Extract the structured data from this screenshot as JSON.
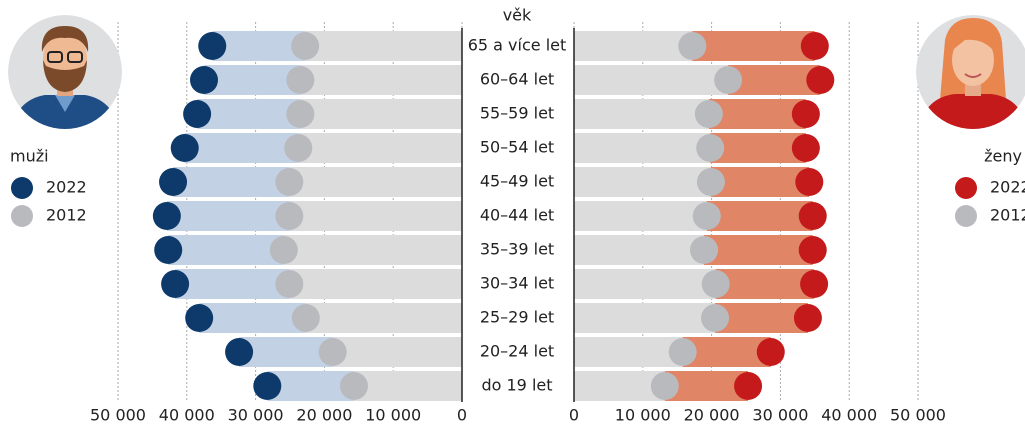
{
  "chart_data": {
    "type": "bar",
    "axis_title": "věk",
    "categories": [
      "65 a více let",
      "60–64 let",
      "55–59 let",
      "50–54 let",
      "45–49 let",
      "40–44 let",
      "35–39 let",
      "30–34 let",
      "25–29 let",
      "20–24 let",
      "do 19 let"
    ],
    "left": {
      "legend_title": "muži",
      "xlim": [
        50000,
        0
      ],
      "xticks": [
        {
          "value": 50000,
          "label": "50 000"
        },
        {
          "value": 40000,
          "label": "40 000"
        },
        {
          "value": 30000,
          "label": "30 000"
        },
        {
          "value": 20000,
          "label": "20 000"
        },
        {
          "value": 10000,
          "label": "10 000"
        },
        0
      ],
      "series": [
        {
          "name": "2022",
          "color": "#0d3a6b",
          "bar_color": "#c3d1e4",
          "values": [
            36300,
            37500,
            38500,
            40300,
            42000,
            42900,
            42700,
            41700,
            38200,
            32400,
            28300
          ]
        },
        {
          "name": "2012",
          "color": "#b9babe",
          "bar_color": "#dcdcdd",
          "values": [
            22800,
            23500,
            23500,
            23800,
            25100,
            25100,
            25900,
            25100,
            22700,
            18800,
            15700
          ]
        }
      ]
    },
    "right": {
      "legend_title": "ženy",
      "xlim": [
        0,
        50000
      ],
      "xticks": [
        0,
        {
          "value": 10000,
          "label": "10 000"
        },
        {
          "value": 20000,
          "label": "20 000"
        },
        {
          "value": 30000,
          "label": "30 000"
        },
        {
          "value": 40000,
          "label": "40 000"
        },
        {
          "value": 50000,
          "label": "50 000"
        }
      ],
      "series": [
        {
          "name": "2022",
          "color": "#c41a1c",
          "bar_color": "#e08566",
          "values": [
            35000,
            35800,
            33700,
            33700,
            34200,
            34700,
            34700,
            34900,
            34000,
            28600,
            25300
          ]
        },
        {
          "name": "2012",
          "color": "#b9babe",
          "bar_color": "#dcdcdd",
          "values": [
            17200,
            22400,
            19600,
            19800,
            19900,
            19300,
            18900,
            20600,
            20500,
            15800,
            13200
          ]
        }
      ]
    },
    "grid": true
  }
}
